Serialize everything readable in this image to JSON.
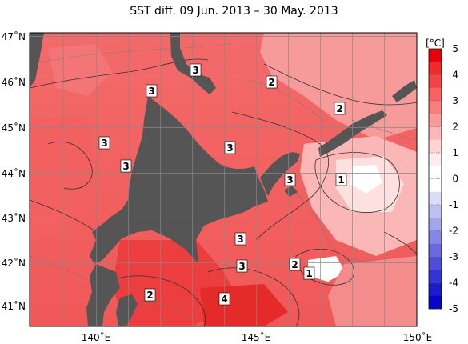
{
  "title": "SST diff. 09 Jun. 2013 – 30 May. 2013",
  "colorbar": {
    "unit": "[°C]",
    "ticks": [
      "5",
      "4",
      "3",
      "2",
      "1",
      "0",
      "-1",
      "-2",
      "-3",
      "-4",
      "-5"
    ],
    "colors": [
      "#e8000a",
      "#ee2a2a",
      "#f24545",
      "#f56262",
      "#f87e7e",
      "#fa9b9b",
      "#fcb8b8",
      "#fdd5d5",
      "#ffeded",
      "#ffffff",
      "#ffffff",
      "#dcdcf7",
      "#c0c0f0",
      "#a4a4ea",
      "#8686e4",
      "#6a6ade",
      "#4e4ed8",
      "#3434d2",
      "#1c1ccc",
      "#0606c6"
    ]
  },
  "axes": {
    "lat_labels": [
      "47˚N",
      "46˚N",
      "45˚N",
      "44˚N",
      "43˚N",
      "42˚N",
      "41˚N"
    ],
    "lon_labels": [
      "140˚E",
      "145˚E",
      "150˚E"
    ]
  },
  "land_color": "#555555",
  "contour_labels": [
    "3",
    "3",
    "2",
    "2",
    "3",
    "3",
    "3",
    "3",
    "1",
    "3",
    "3",
    "2",
    "1",
    "2",
    "4"
  ]
}
